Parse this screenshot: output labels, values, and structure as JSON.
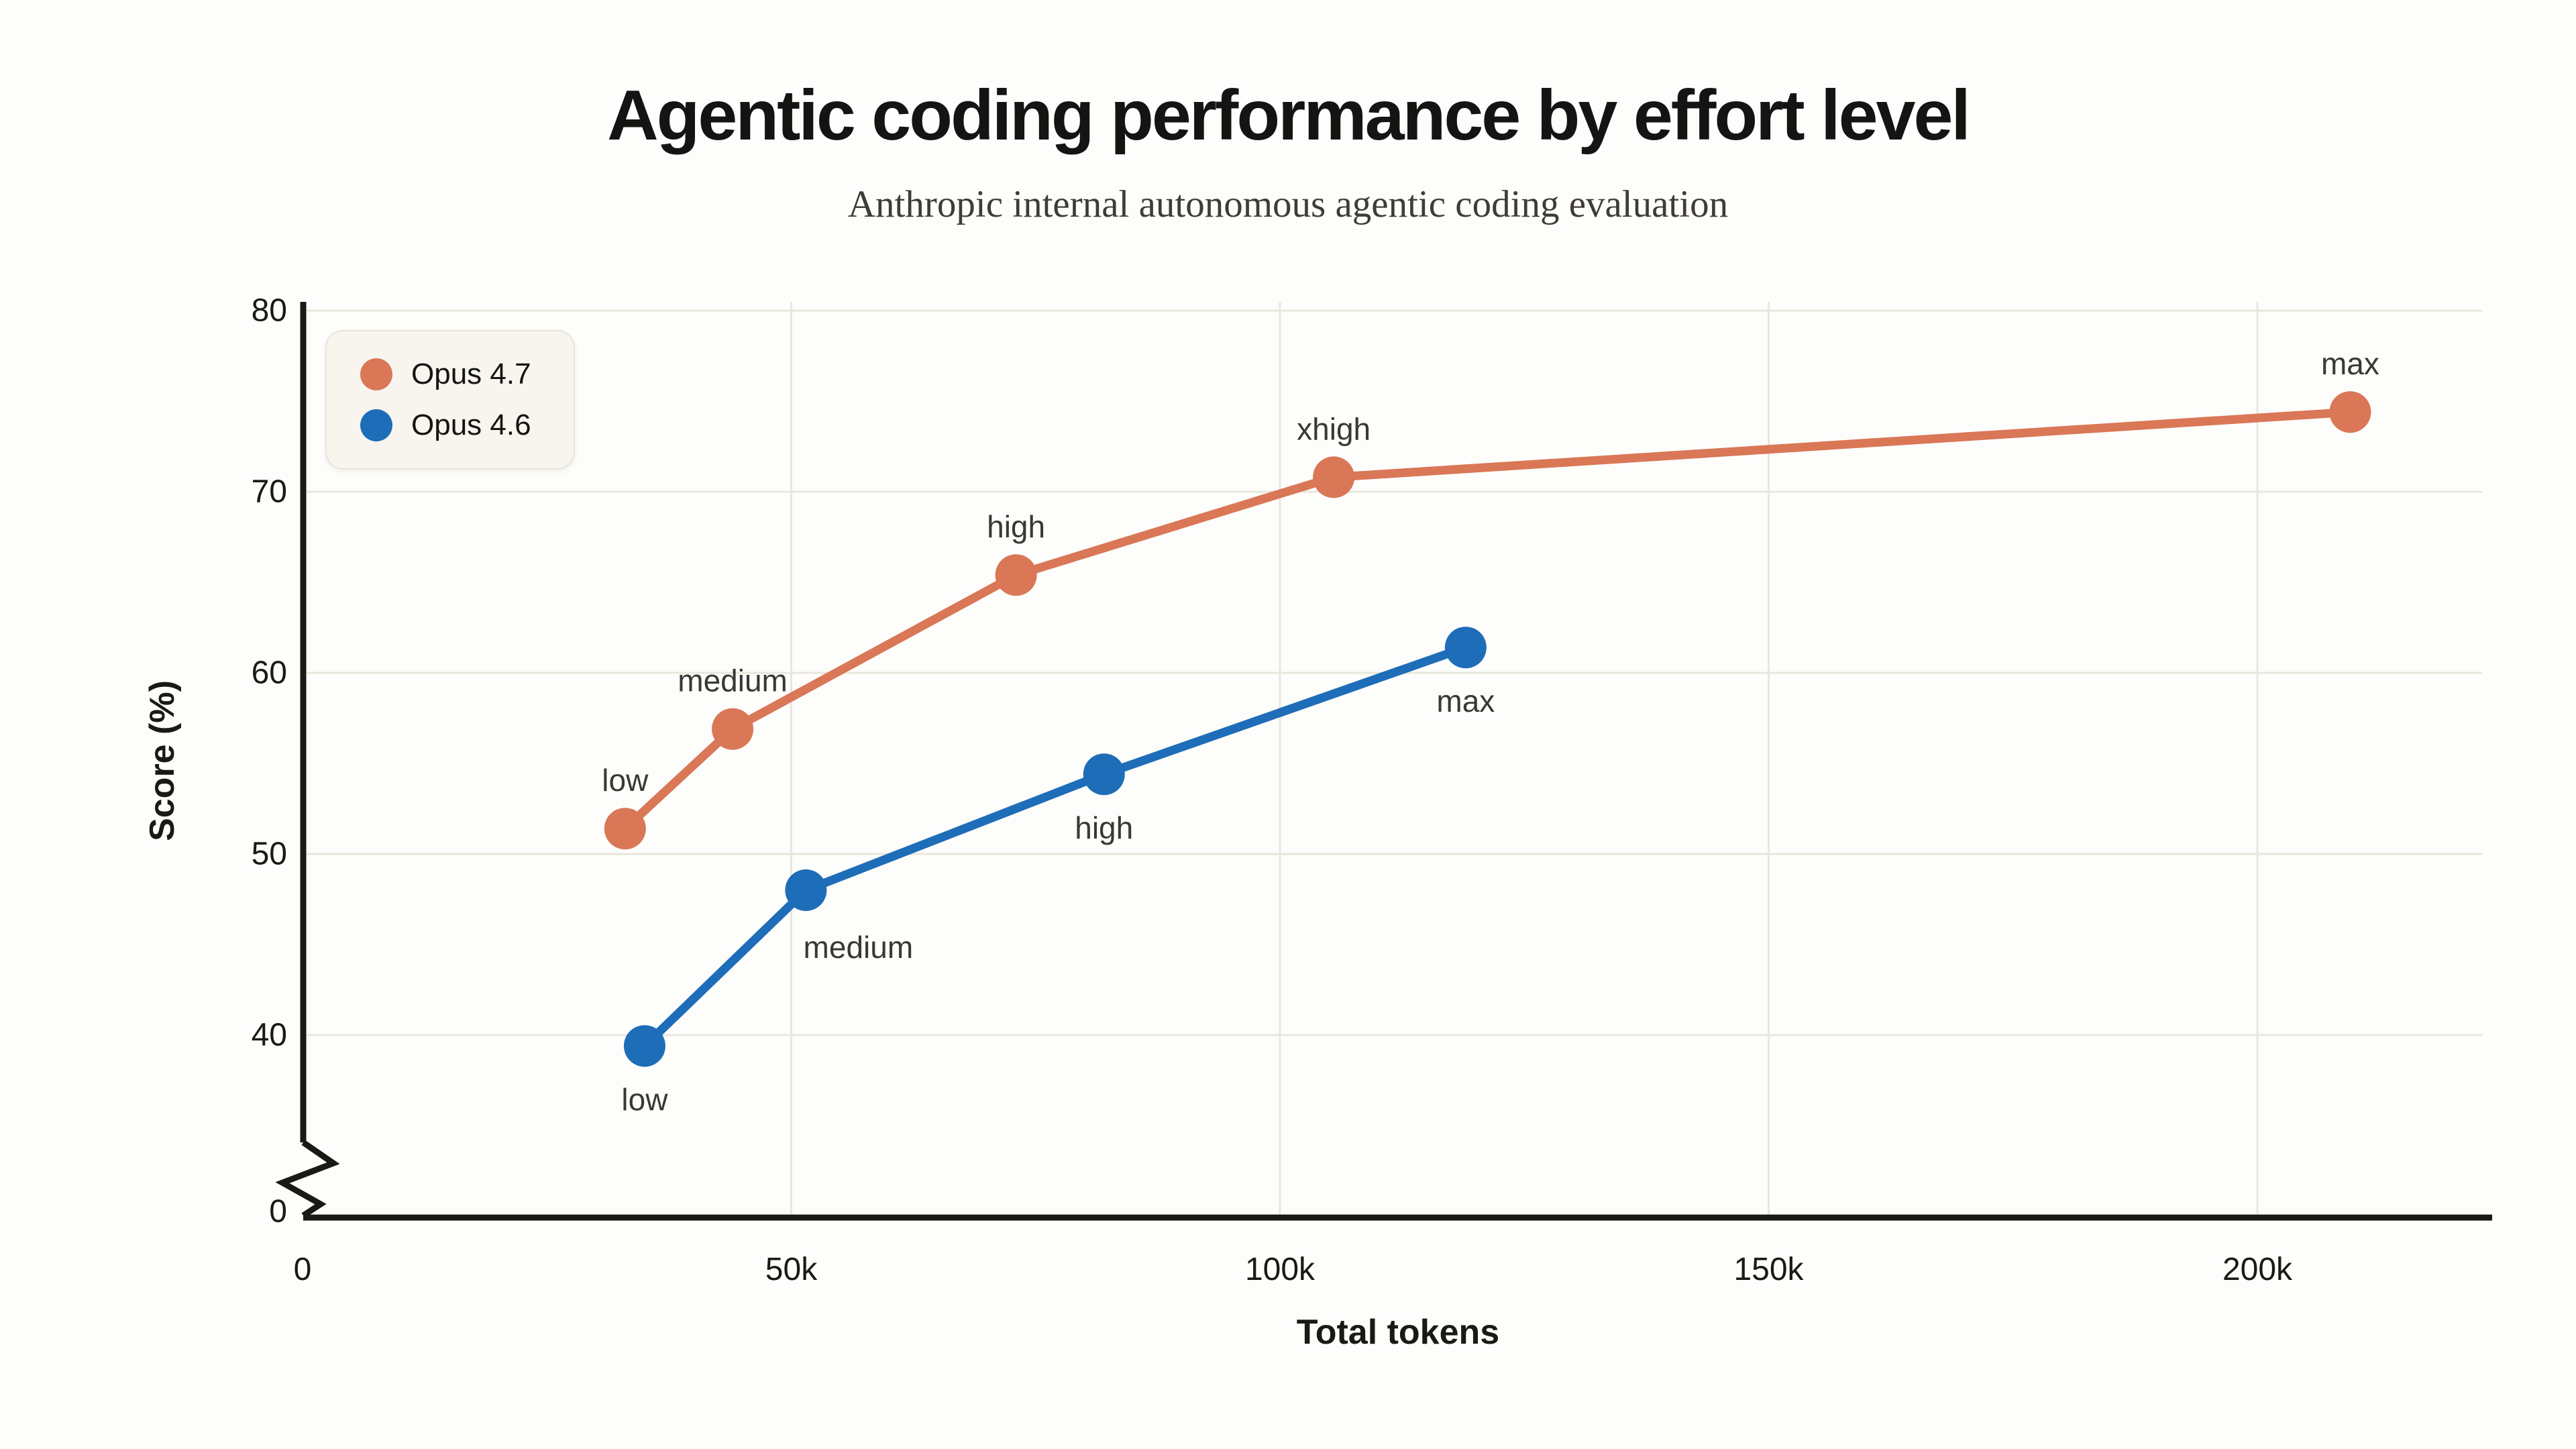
{
  "page": {
    "title": "Agentic coding performance by effort level",
    "subtitle": "Anthropic internal autonomous agentic coding evaluation"
  },
  "chart_data": {
    "type": "line",
    "title": "Agentic coding performance by effort level",
    "subtitle": "Anthropic internal autonomous agentic coding evaluation",
    "xlabel": "Total tokens",
    "ylabel": "Score (%)",
    "grid": true,
    "legend_position": "top-left",
    "x_axis": {
      "ticks": [
        {
          "value": 0,
          "label": "0"
        },
        {
          "value": 50000,
          "label": "50k"
        },
        {
          "value": 100000,
          "label": "100k"
        },
        {
          "value": 150000,
          "label": "150k"
        },
        {
          "value": 200000,
          "label": "200k"
        }
      ],
      "max": 223000
    },
    "y_axis": {
      "ticks": [
        {
          "value": 0,
          "label": "0"
        },
        {
          "value": 40,
          "label": "40"
        },
        {
          "value": 50,
          "label": "50"
        },
        {
          "value": 60,
          "label": "60"
        },
        {
          "value": 70,
          "label": "70"
        },
        {
          "value": 80,
          "label": "80"
        }
      ],
      "axis_break_below": 40,
      "max": 80
    },
    "series": [
      {
        "name": "Opus 4.7",
        "color": "#D97757",
        "points": [
          {
            "tokens": 33000,
            "score": 51.4,
            "label": "low",
            "label_pos": "above"
          },
          {
            "tokens": 44000,
            "score": 56.9,
            "label": "medium",
            "label_pos": "above"
          },
          {
            "tokens": 73000,
            "score": 65.4,
            "label": "high",
            "label_pos": "above"
          },
          {
            "tokens": 105500,
            "score": 70.8,
            "label": "xhigh",
            "label_pos": "above"
          },
          {
            "tokens": 209500,
            "score": 74.4,
            "label": "max",
            "label_pos": "above"
          }
        ]
      },
      {
        "name": "Opus 4.6",
        "color": "#1E6DB8",
        "points": [
          {
            "tokens": 35000,
            "score": 39.4,
            "label": "low",
            "label_pos": "below"
          },
          {
            "tokens": 51500,
            "score": 48.0,
            "label": "medium",
            "label_pos": "below-right"
          },
          {
            "tokens": 82000,
            "score": 54.4,
            "label": "high",
            "label_pos": "below"
          },
          {
            "tokens": 119000,
            "score": 61.4,
            "label": "max",
            "label_pos": "below"
          }
        ]
      }
    ],
    "colors": {
      "grid": "#E9E6DD",
      "axis": "#1A1915",
      "point_label_text": "#3A3833",
      "tick_text": "#1A1915",
      "background": "#FDFDFB",
      "legend_background": "#F7F5EE"
    }
  }
}
